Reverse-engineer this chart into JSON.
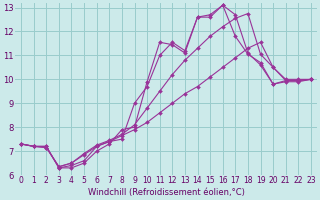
{
  "background_color": "#cceaea",
  "grid_color": "#99cccc",
  "line_color": "#993399",
  "marker_style": "D",
  "marker_size": 2.0,
  "line_width": 0.8,
  "xlabel": "Windchill (Refroidissement éolien,°C)",
  "xlabel_fontsize": 6.0,
  "xlabel_color": "#660066",
  "tick_color": "#660066",
  "tick_fontsize": 5.5,
  "xlim": [
    -0.5,
    23.5
  ],
  "ylim": [
    6.0,
    13.2
  ],
  "xticks": [
    0,
    1,
    2,
    3,
    4,
    5,
    6,
    7,
    8,
    9,
    10,
    11,
    12,
    13,
    14,
    15,
    16,
    17,
    18,
    19,
    20,
    21,
    22,
    23
  ],
  "yticks": [
    6,
    7,
    8,
    9,
    10,
    11,
    12,
    13
  ],
  "series": [
    {
      "x": [
        0,
        1,
        2,
        3,
        4,
        5,
        6,
        7,
        8,
        9,
        10,
        11,
        12,
        13,
        14,
        15,
        16,
        17,
        18,
        19,
        20,
        21,
        22,
        23
      ],
      "y": [
        7.3,
        7.2,
        7.2,
        6.3,
        6.3,
        6.5,
        7.0,
        7.3,
        7.9,
        8.0,
        9.9,
        11.55,
        11.45,
        11.1,
        12.6,
        12.6,
        13.1,
        12.7,
        11.1,
        10.6,
        9.8,
        9.9,
        9.9,
        10.0
      ]
    },
    {
      "x": [
        0,
        1,
        2,
        3,
        4,
        5,
        6,
        7,
        8,
        9,
        10,
        11,
        12,
        13,
        14,
        15,
        16,
        17,
        18,
        19,
        20,
        21,
        22,
        23
      ],
      "y": [
        7.3,
        7.2,
        7.2,
        6.3,
        6.4,
        6.6,
        7.2,
        7.4,
        7.5,
        9.0,
        9.7,
        11.0,
        11.55,
        11.2,
        12.6,
        12.7,
        13.1,
        11.8,
        11.05,
        10.7,
        9.8,
        9.95,
        9.95,
        10.0
      ]
    },
    {
      "x": [
        0,
        1,
        2,
        3,
        4,
        5,
        6,
        7,
        8,
        9,
        10,
        11,
        12,
        13,
        14,
        15,
        16,
        17,
        18,
        19,
        20,
        21,
        22,
        23
      ],
      "y": [
        7.3,
        7.2,
        7.15,
        6.35,
        6.5,
        6.9,
        7.25,
        7.45,
        7.7,
        8.1,
        8.8,
        9.5,
        10.2,
        10.8,
        11.3,
        11.8,
        12.2,
        12.55,
        12.75,
        11.05,
        10.5,
        10.0,
        10.0,
        10.0
      ]
    },
    {
      "x": [
        0,
        1,
        2,
        3,
        4,
        5,
        6,
        7,
        8,
        9,
        10,
        11,
        12,
        13,
        14,
        15,
        16,
        17,
        18,
        19,
        20,
        21,
        22,
        23
      ],
      "y": [
        7.3,
        7.2,
        7.15,
        6.35,
        6.5,
        6.85,
        7.2,
        7.4,
        7.65,
        7.9,
        8.2,
        8.6,
        9.0,
        9.4,
        9.7,
        10.1,
        10.5,
        10.9,
        11.3,
        11.55,
        10.5,
        9.95,
        9.95,
        10.0
      ]
    }
  ]
}
